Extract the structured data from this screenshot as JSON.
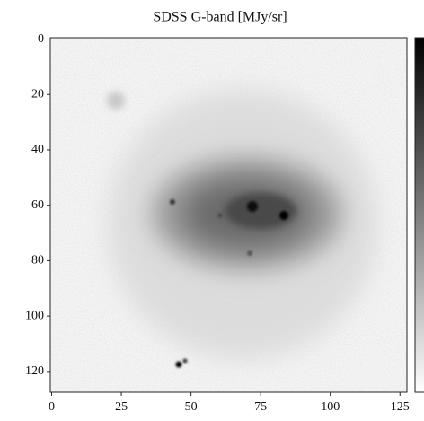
{
  "chart_data": {
    "type": "image",
    "title": "SDSS G-band [MJy/sr]",
    "xlim": [
      -0.5,
      127.5
    ],
    "ylim": [
      127.5,
      -0.5
    ],
    "xticks": [
      0,
      25,
      50,
      75,
      100,
      125
    ],
    "yticks": [
      0,
      20,
      40,
      60,
      80,
      100,
      120
    ]
  }
}
